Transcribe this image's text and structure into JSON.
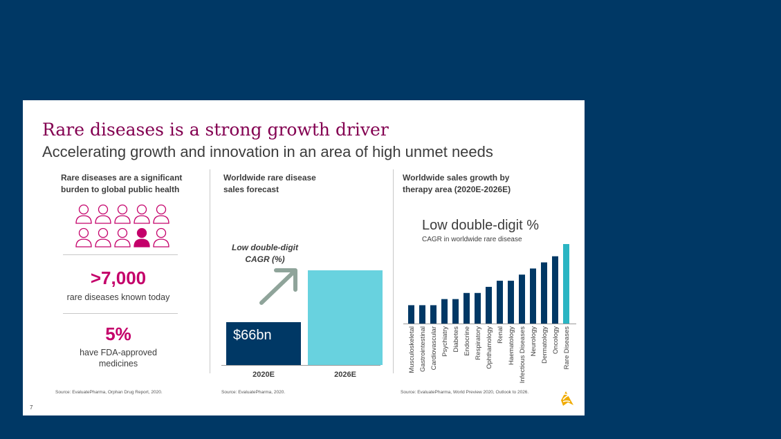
{
  "slide": {
    "title": "Rare diseases is a strong growth driver",
    "subtitle": "Accelerating growth and innovation in an area of high unmet needs",
    "page_number": "7",
    "brand_colors": {
      "primary": "#830051",
      "accent": "#c4006a",
      "navy": "#003865",
      "teal": "#68d2df"
    }
  },
  "left": {
    "heading_line1": "Rare diseases are a significant",
    "heading_line2": "burden to global public health",
    "people_icons": 10,
    "highlighted_icon": 8,
    "stat1_value": ">7,000",
    "stat1_text": "rare diseases known today",
    "stat2_value": "5%",
    "stat2_text_line1": "have FDA-approved",
    "stat2_text_line2": "medicines",
    "source": "Source: EvaluatePharma, Orphan Drug Report, 2020."
  },
  "middle": {
    "heading_line1": "Worldwide rare disease",
    "heading_line2": "sales forecast",
    "cagr_line1": "Low double-digit",
    "cagr_line2": "CAGR (%)",
    "source": "Source: EvaluatePharma, 2020."
  },
  "right": {
    "heading_line1": "Worldwide sales growth by",
    "heading_line2": "therapy area (2020E-2026E)",
    "annotation_title": "Low double-digit %",
    "annotation_sub": "CAGR in worldwide rare disease",
    "source": "Source: EvaluatePharma, World Preview 2020, Outlook to 2026."
  },
  "chart_data": [
    {
      "type": "bar",
      "categories": [
        "2020E",
        "2026E"
      ],
      "values": [
        66,
        145
      ],
      "data_labels": [
        "$66bn",
        ""
      ],
      "colors": [
        "#003865",
        "#68d2df"
      ],
      "title": "",
      "xlabel": "",
      "ylabel": "",
      "ylim": [
        0,
        180
      ]
    },
    {
      "type": "bar",
      "categories": [
        "Musculoskeletal",
        "Gastrointestinal",
        "Cardiovascular",
        "Psychiatry",
        "Diabetes",
        "Endocrine",
        "Respiratory",
        "Ophthamology",
        "Renal",
        "Haematology",
        "Infectious Diseases",
        "Neurology",
        "Dermatology",
        "Oncology",
        "Rare Diseases"
      ],
      "values": [
        3,
        3,
        3,
        4,
        4,
        5,
        5,
        6,
        7,
        7,
        8,
        9,
        10,
        11,
        13
      ],
      "colors": {
        "default": "#003865",
        "highlight": "#2bb5c3"
      },
      "highlight_index": 14,
      "title": "",
      "xlabel": "",
      "ylabel": "",
      "ylim": [
        0,
        13
      ]
    }
  ]
}
